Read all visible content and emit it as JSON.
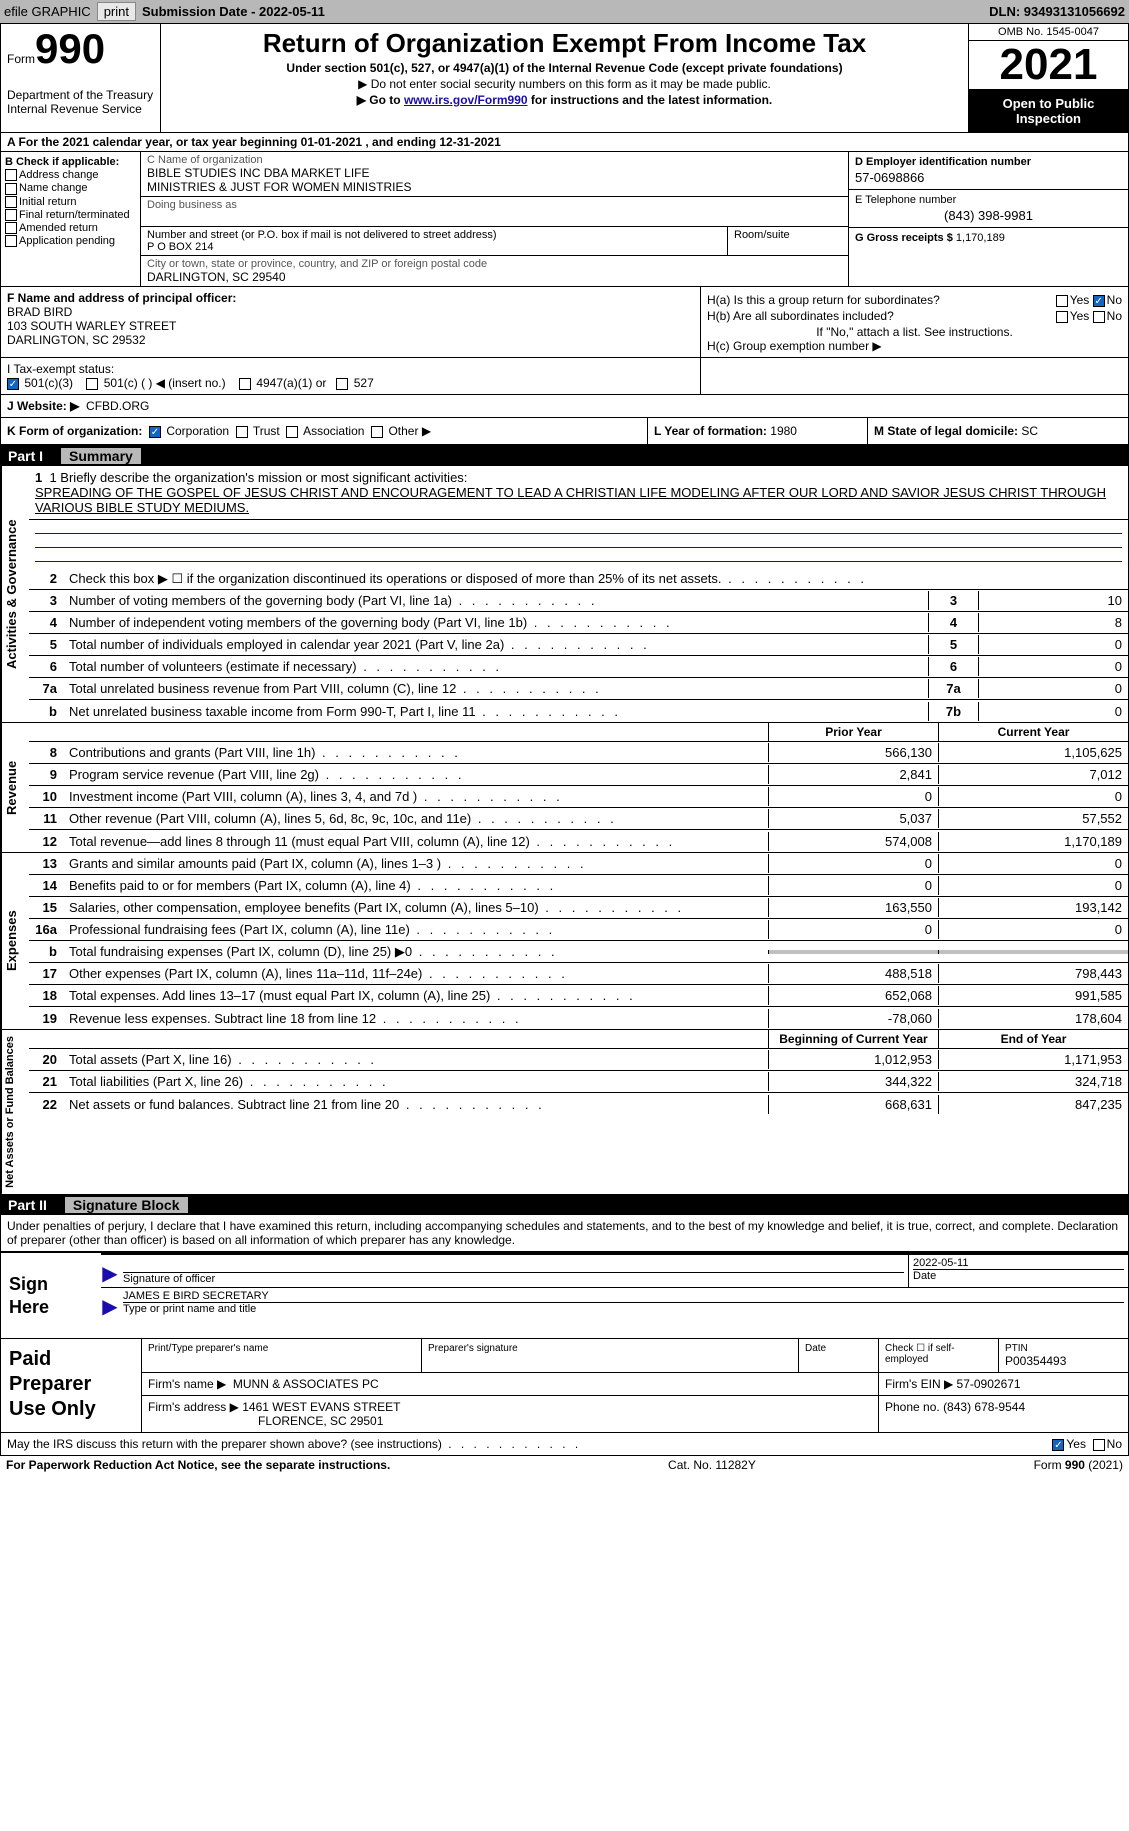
{
  "topbar": {
    "efile": "efile GRAPHIC",
    "print": "print",
    "submission": "Submission Date - 2022-05-11",
    "dln": "DLN: 93493131056692"
  },
  "header": {
    "form_label": "Form",
    "form_number": "990",
    "dept": "Department of the Treasury\nInternal Revenue Service",
    "title": "Return of Organization Exempt From Income Tax",
    "subtitle": "Under section 501(c), 527, or 4947(a)(1) of the Internal Revenue Code (except private foundations)",
    "note1": "▶ Do not enter social security numbers on this form as it may be made public.",
    "note2_pre": "▶ Go to ",
    "note2_link": "www.irs.gov/Form990",
    "note2_post": " for instructions and the latest information.",
    "omb": "OMB No. 1545-0047",
    "year": "2021",
    "inspection": "Open to Public Inspection"
  },
  "section_a": "A For the 2021 calendar year, or tax year beginning 01-01-2021    , and ending 12-31-2021",
  "box_b": {
    "header": "B Check if applicable:",
    "opts": [
      "Address change",
      "Name change",
      "Initial return",
      "Final return/terminated",
      "Amended return",
      "Application pending"
    ]
  },
  "box_c": {
    "name_lbl": "C Name of organization",
    "name": "BIBLE STUDIES INC DBA MARKET LIFE\nMINISTRIES & JUST FOR WOMEN MINISTRIES",
    "dba_lbl": "Doing business as",
    "dba": "",
    "addr_lbl": "Number and street (or P.O. box if mail is not delivered to street address)",
    "room_lbl": "Room/suite",
    "addr": "P O BOX 214",
    "city_lbl": "City or town, state or province, country, and ZIP or foreign postal code",
    "city": "DARLINGTON, SC  29540"
  },
  "box_d": {
    "ein_lbl": "D Employer identification number",
    "ein": "57-0698866",
    "phone_lbl": "E Telephone number",
    "phone": "(843) 398-9981",
    "gross_lbl": "G Gross receipts $",
    "gross": "1,170,189"
  },
  "box_f": {
    "lbl": "F  Name and address of principal officer:",
    "name": "BRAD BIRD",
    "addr1": "103 SOUTH WARLEY STREET",
    "addr2": "DARLINGTON, SC  29532"
  },
  "box_h": {
    "a_lbl": "H(a)  Is this a group return for subordinates?",
    "b_lbl": "H(b)  Are all subordinates included?",
    "b_note": "If \"No,\" attach a list. See instructions.",
    "c_lbl": "H(c)  Group exemption number ▶"
  },
  "tax_status": {
    "lbl": "I   Tax-exempt status:",
    "opts": [
      "501(c)(3)",
      "501(c) (  ) ◀ (insert no.)",
      "4947(a)(1) or",
      "527"
    ]
  },
  "website": {
    "lbl": "J  Website: ▶",
    "val": "CFBD.ORG"
  },
  "k_lbl": "K Form of organization:",
  "k_opts": [
    "Corporation",
    "Trust",
    "Association",
    "Other ▶"
  ],
  "l_lbl": "L Year of formation:",
  "l_val": "1980",
  "m_lbl": "M State of legal domicile:",
  "m_val": "SC",
  "part1": {
    "label": "Part I",
    "title": "Summary"
  },
  "mission": {
    "lbl": "1  Briefly describe the organization's mission or most significant activities:",
    "text": "SPREADING OF THE GOSPEL OF JESUS CHRIST AND ENCOURAGEMENT TO LEAD A CHRISTIAN LIFE MODELING AFTER OUR LORD AND SAVIOR JESUS CHRIST THROUGH VARIOUS BIBLE STUDY MEDIUMS."
  },
  "side_labels": {
    "gov": "Activities & Governance",
    "rev": "Revenue",
    "exp": "Expenses",
    "net": "Net Assets or Fund Balances"
  },
  "lines_gov": [
    {
      "num": "2",
      "desc": "Check this box ▶ ☐  if the organization discontinued its operations or disposed of more than 25% of its net assets.",
      "box": "",
      "val": ""
    },
    {
      "num": "3",
      "desc": "Number of voting members of the governing body (Part VI, line 1a)",
      "box": "3",
      "val": "10"
    },
    {
      "num": "4",
      "desc": "Number of independent voting members of the governing body (Part VI, line 1b)",
      "box": "4",
      "val": "8"
    },
    {
      "num": "5",
      "desc": "Total number of individuals employed in calendar year 2021 (Part V, line 2a)",
      "box": "5",
      "val": "0"
    },
    {
      "num": "6",
      "desc": "Total number of volunteers (estimate if necessary)",
      "box": "6",
      "val": "0"
    },
    {
      "num": "7a",
      "desc": "Total unrelated business revenue from Part VIII, column (C), line 12",
      "box": "7a",
      "val": "0"
    },
    {
      "num": "b",
      "desc": "Net unrelated business taxable income from Form 990-T, Part I, line 11",
      "box": "7b",
      "val": "0"
    }
  ],
  "col_hdr": {
    "prior": "Prior Year",
    "current": "Current Year"
  },
  "lines_rev": [
    {
      "num": "8",
      "desc": "Contributions and grants (Part VIII, line 1h)",
      "prior": "566,130",
      "current": "1,105,625"
    },
    {
      "num": "9",
      "desc": "Program service revenue (Part VIII, line 2g)",
      "prior": "2,841",
      "current": "7,012"
    },
    {
      "num": "10",
      "desc": "Investment income (Part VIII, column (A), lines 3, 4, and 7d )",
      "prior": "0",
      "current": "0"
    },
    {
      "num": "11",
      "desc": "Other revenue (Part VIII, column (A), lines 5, 6d, 8c, 9c, 10c, and 11e)",
      "prior": "5,037",
      "current": "57,552"
    },
    {
      "num": "12",
      "desc": "Total revenue—add lines 8 through 11 (must equal Part VIII, column (A), line 12)",
      "prior": "574,008",
      "current": "1,170,189"
    }
  ],
  "lines_exp": [
    {
      "num": "13",
      "desc": "Grants and similar amounts paid (Part IX, column (A), lines 1–3 )",
      "prior": "0",
      "current": "0"
    },
    {
      "num": "14",
      "desc": "Benefits paid to or for members (Part IX, column (A), line 4)",
      "prior": "0",
      "current": "0"
    },
    {
      "num": "15",
      "desc": "Salaries, other compensation, employee benefits (Part IX, column (A), lines 5–10)",
      "prior": "163,550",
      "current": "193,142"
    },
    {
      "num": "16a",
      "desc": "Professional fundraising fees (Part IX, column (A), line 11e)",
      "prior": "0",
      "current": "0"
    },
    {
      "num": "b",
      "desc": "Total fundraising expenses (Part IX, column (D), line 25) ▶0",
      "prior": "",
      "current": "",
      "shaded": true
    },
    {
      "num": "17",
      "desc": "Other expenses (Part IX, column (A), lines 11a–11d, 11f–24e)",
      "prior": "488,518",
      "current": "798,443"
    },
    {
      "num": "18",
      "desc": "Total expenses. Add lines 13–17 (must equal Part IX, column (A), line 25)",
      "prior": "652,068",
      "current": "991,585"
    },
    {
      "num": "19",
      "desc": "Revenue less expenses. Subtract line 18 from line 12",
      "prior": "-78,060",
      "current": "178,604"
    }
  ],
  "col_hdr2": {
    "prior": "Beginning of Current Year",
    "current": "End of Year"
  },
  "lines_net": [
    {
      "num": "20",
      "desc": "Total assets (Part X, line 16)",
      "prior": "1,012,953",
      "current": "1,171,953"
    },
    {
      "num": "21",
      "desc": "Total liabilities (Part X, line 26)",
      "prior": "344,322",
      "current": "324,718"
    },
    {
      "num": "22",
      "desc": "Net assets or fund balances. Subtract line 21 from line 20",
      "prior": "668,631",
      "current": "847,235"
    }
  ],
  "part2": {
    "label": "Part II",
    "title": "Signature Block"
  },
  "sig_intro": "Under penalties of perjury, I declare that I have examined this return, including accompanying schedules and statements, and to the best of my knowledge and belief, it is true, correct, and complete. Declaration of preparer (other than officer) is based on all information of which preparer has any knowledge.",
  "sign": {
    "here": "Sign Here",
    "sig_lbl": "Signature of officer",
    "date_lbl": "Date",
    "date": "2022-05-11",
    "name": "JAMES E BIRD  SECRETARY",
    "name_lbl": "Type or print name and title"
  },
  "prep": {
    "here": "Paid Preparer Use Only",
    "r1": {
      "c1_lbl": "Print/Type preparer's name",
      "c1": "",
      "c2_lbl": "Preparer's signature",
      "c2": "",
      "c3_lbl": "Date",
      "c3": "",
      "c4_lbl": "Check ☐ if self-employed",
      "c5_lbl": "PTIN",
      "c5": "P00354493"
    },
    "r2": {
      "lbl": "Firm's name    ▶",
      "val": "MUNN & ASSOCIATES PC",
      "ein_lbl": "Firm's EIN ▶",
      "ein": "57-0902671"
    },
    "r3": {
      "lbl": "Firm's address ▶",
      "val1": "1461 WEST EVANS STREET",
      "val2": "FLORENCE, SC  29501",
      "ph_lbl": "Phone no.",
      "ph": "(843) 678-9544"
    }
  },
  "discuss": "May the IRS discuss this return with the preparer shown above? (see instructions)",
  "footer": {
    "left": "For Paperwork Reduction Act Notice, see the separate instructions.",
    "mid": "Cat. No. 11282Y",
    "right": "Form 990 (2021)"
  }
}
